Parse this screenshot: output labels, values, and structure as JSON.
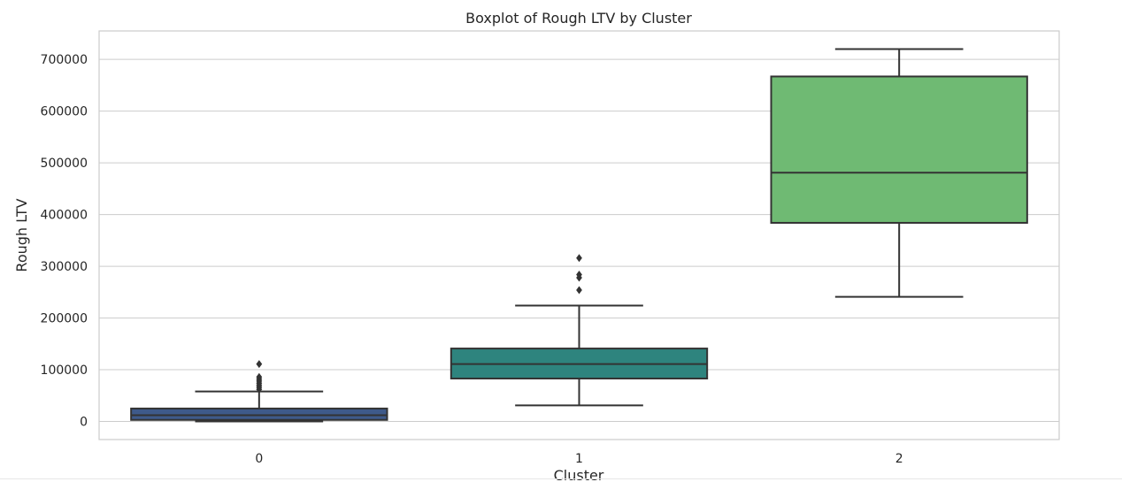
{
  "chart_data": {
    "type": "boxplot",
    "title": "Boxplot of Rough LTV by Cluster",
    "xlabel": "Cluster",
    "ylabel": "Rough LTV",
    "ylim": [
      -35000,
      755000
    ],
    "yticks": [
      0,
      100000,
      200000,
      300000,
      400000,
      500000,
      600000,
      700000
    ],
    "grid": true,
    "categories": [
      "0",
      "1",
      "2"
    ],
    "boxes": [
      {
        "category": "0",
        "color": "#3e5a8a",
        "whisker_low": 0,
        "q1": 3000,
        "median": 12000,
        "q3": 25000,
        "whisker_high": 58000,
        "outliers": [
          62000,
          66000,
          70000,
          74000,
          78000,
          82000,
          86000,
          111000
        ]
      },
      {
        "category": "1",
        "color": "#2e847e",
        "whisker_low": 31000,
        "q1": 83000,
        "median": 111000,
        "q3": 141000,
        "whisker_high": 224000,
        "outliers": [
          254000,
          278000,
          284000,
          316000
        ]
      },
      {
        "category": "2",
        "color": "#6fba73",
        "whisker_low": 241000,
        "q1": 384000,
        "median": 481000,
        "q3": 667000,
        "whisker_high": 720000,
        "outliers": []
      }
    ]
  }
}
